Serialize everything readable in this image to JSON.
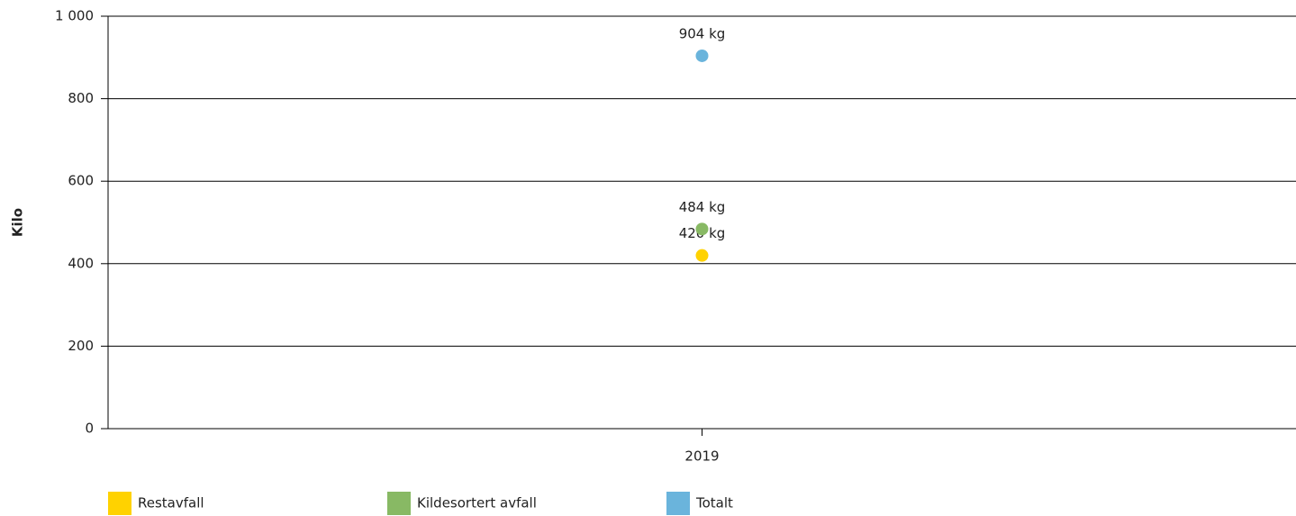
{
  "chart_data": {
    "type": "line",
    "y_label": "Kilo",
    "categories": [
      "2019"
    ],
    "series": [
      {
        "name": "Restavfall",
        "color": "#ffd200",
        "values": [
          420
        ],
        "value_labels": [
          "420 kg"
        ]
      },
      {
        "name": "Kildesortert avfall",
        "color": "#88b964",
        "values": [
          484
        ],
        "value_labels": [
          "484 kg"
        ]
      },
      {
        "name": "Totalt",
        "color": "#6ab4dc",
        "values": [
          904
        ],
        "value_labels": [
          "904 kg"
        ]
      }
    ],
    "ylim": [
      0,
      1000
    ],
    "yticks": [
      0,
      200,
      400,
      600,
      800,
      {
        "value": 1000,
        "label": "1 000"
      }
    ],
    "grid": true,
    "legend": "bottom"
  }
}
